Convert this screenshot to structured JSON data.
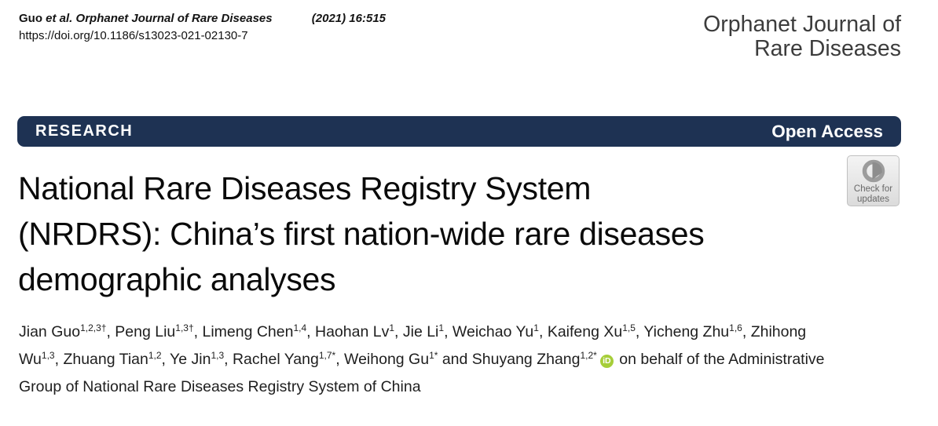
{
  "masthead": {
    "citation_author": "Guo",
    "citation_rest": "et al. Orphanet Journal of Rare Diseases",
    "citation_volume": "(2021) 16:515",
    "doi": "https://doi.org/10.1186/s13023-021-02130-7",
    "journal_line1": "Orphanet Journal of",
    "journal_line2": "Rare Diseases"
  },
  "banner": {
    "section_label": "RESEARCH",
    "access_label": "Open Access"
  },
  "check_for_updates": {
    "line1": "Check for",
    "line2": "updates"
  },
  "article": {
    "title_lines": [
      "National Rare Diseases Registry System",
      "(NRDRS): China’s first nation-wide rare diseases",
      "demographic analyses"
    ],
    "authors": [
      {
        "name": "Jian Guo",
        "sup": "1,2,3†",
        "sep": ", "
      },
      {
        "name": "Peng Liu",
        "sup": "1,3†",
        "sep": ", "
      },
      {
        "name": "Limeng Chen",
        "sup": "1,4",
        "sep": ", "
      },
      {
        "name": "Haohan Lv",
        "sup": "1",
        "sep": ", "
      },
      {
        "name": "Jie Li",
        "sup": "1",
        "sep": ", "
      },
      {
        "name": "Weichao Yu",
        "sup": "1",
        "sep": ", "
      },
      {
        "name": "Kaifeng Xu",
        "sup": "1,5",
        "sep": ", "
      },
      {
        "name": "Yicheng Zhu",
        "sup": "1,6",
        "sep": ", "
      },
      {
        "name": "Zhihong Wu",
        "sup": "1,3",
        "sep": ", "
      },
      {
        "name": "Zhuang Tian",
        "sup": "1,2",
        "sep": ", "
      },
      {
        "name": "Ye Jin",
        "sup": "1,3",
        "sep": ", "
      },
      {
        "name": "Rachel Yang",
        "sup": "1,7*",
        "sep": ", "
      },
      {
        "name": "Weihong Gu",
        "sup": "1*",
        "sep": " and "
      },
      {
        "name": "Shuyang Zhang",
        "sup": "1,2*",
        "sep": "",
        "orcid": true
      }
    ],
    "orcid_label": "iD",
    "authors_tail": "on behalf of the Administrative Group of National Rare Diseases Registry System of China"
  },
  "colors": {
    "banner_navy": "#1e3253",
    "orcid_green": "#a6ce39",
    "journal_gray": "#3c3c3c"
  }
}
